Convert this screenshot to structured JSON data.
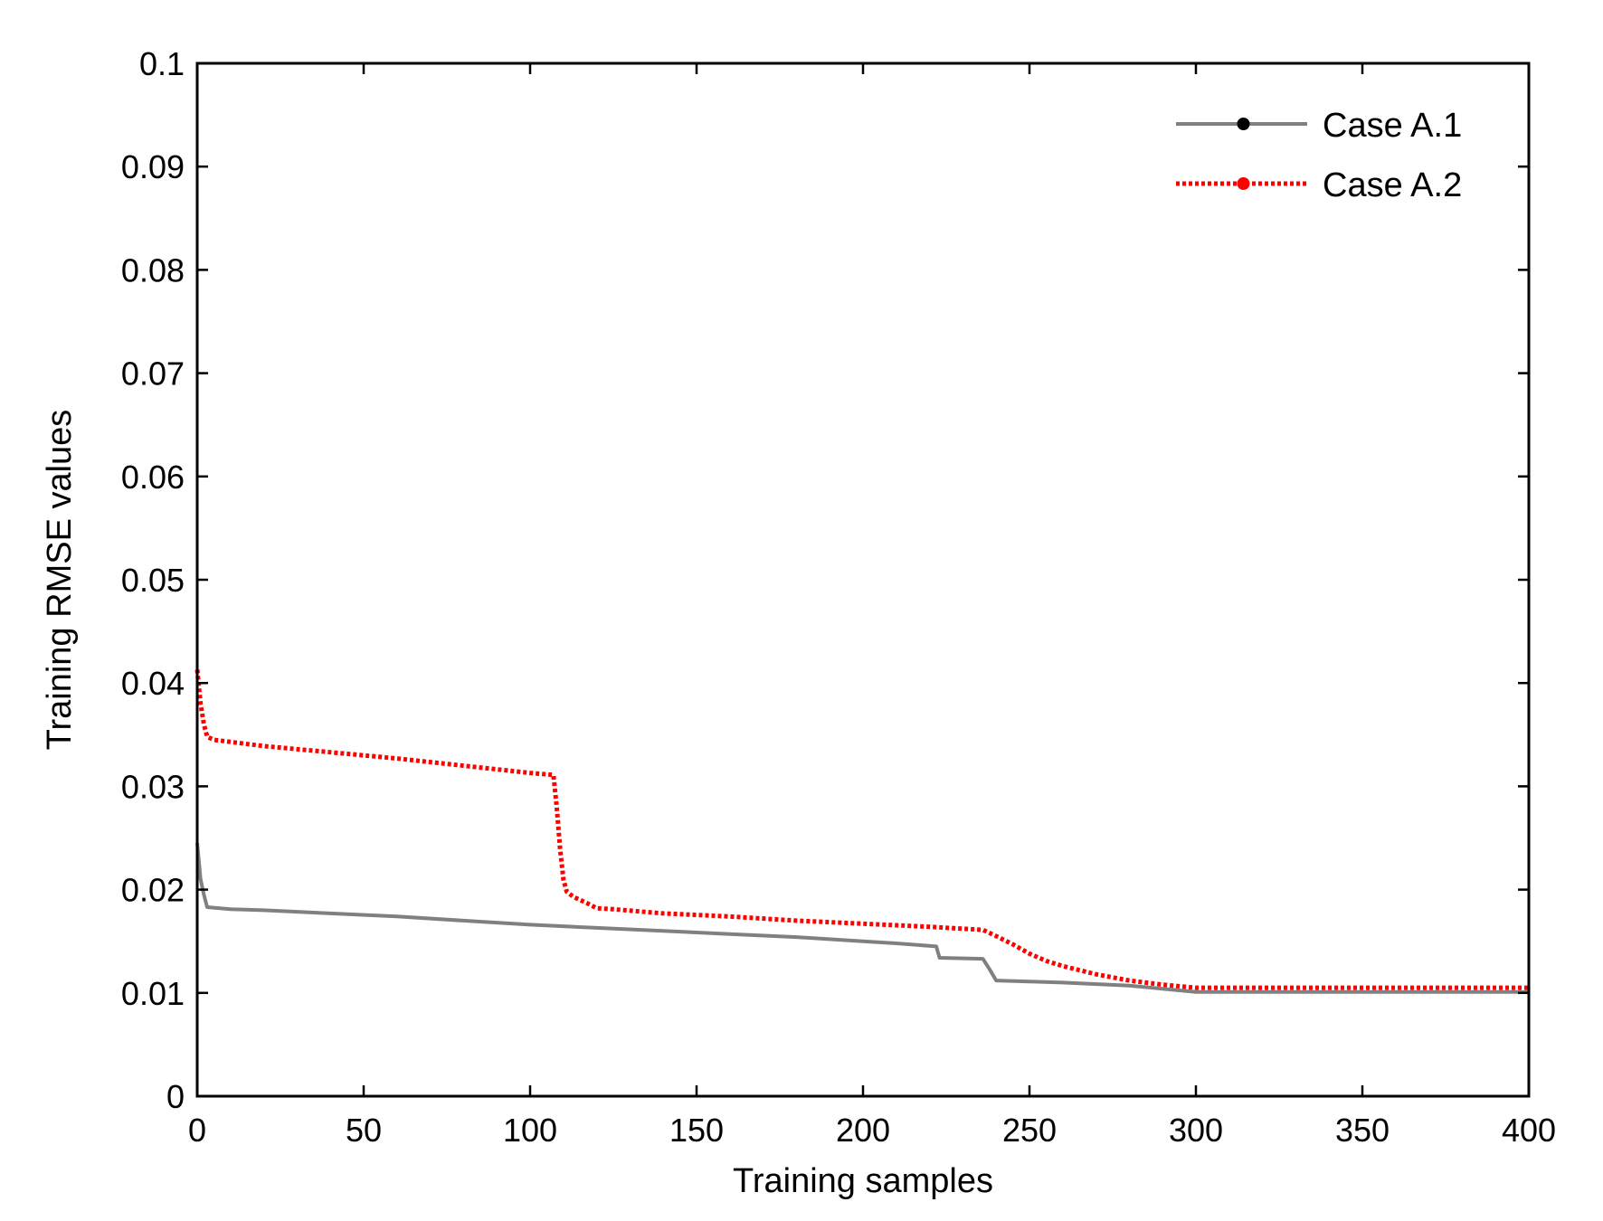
{
  "chart_data": {
    "type": "line",
    "title": "",
    "xlabel": "Training samples",
    "ylabel": "Training RMSE values",
    "xlim": [
      0,
      400
    ],
    "ylim": [
      0,
      0.1
    ],
    "xticks": [
      0,
      50,
      100,
      150,
      200,
      250,
      300,
      350,
      400
    ],
    "xtick_labels": [
      "0",
      "50",
      "100",
      "150",
      "200",
      "250",
      "300",
      "350",
      "400"
    ],
    "yticks": [
      0,
      0.01,
      0.02,
      0.03,
      0.04,
      0.05,
      0.06,
      0.07,
      0.08,
      0.09,
      0.1
    ],
    "ytick_labels": [
      "0",
      "0.01",
      "0.02",
      "0.03",
      "0.04",
      "0.05",
      "0.06",
      "0.07",
      "0.08",
      "0.09",
      "0.1"
    ],
    "grid": false,
    "legend_position": "top-right",
    "series": [
      {
        "name": "Case A.1",
        "color": "#808080",
        "marker_color": "#000000",
        "style": "solid",
        "x": [
          0,
          1,
          2,
          3,
          10,
          20,
          40,
          60,
          80,
          100,
          120,
          140,
          160,
          180,
          200,
          210,
          222,
          223,
          236,
          238,
          240,
          250,
          260,
          280,
          290,
          300,
          350,
          400
        ],
        "y": [
          0.0245,
          0.021,
          0.0195,
          0.0183,
          0.0181,
          0.018,
          0.0177,
          0.0174,
          0.017,
          0.0166,
          0.0163,
          0.016,
          0.0157,
          0.0154,
          0.015,
          0.0148,
          0.0145,
          0.0134,
          0.0133,
          0.0123,
          0.0112,
          0.0111,
          0.011,
          0.0107,
          0.0104,
          0.0101,
          0.0101,
          0.0101
        ]
      },
      {
        "name": "Case A.2",
        "color": "#ff0000",
        "marker_color": "#ff0000",
        "style": "dotted",
        "x": [
          0,
          1,
          2,
          3,
          5,
          20,
          40,
          60,
          80,
          100,
          107,
          108,
          109,
          110,
          111,
          113,
          117,
          120,
          125,
          140,
          160,
          180,
          200,
          220,
          236,
          240,
          245,
          250,
          255,
          260,
          270,
          280,
          290,
          300,
          350,
          400
        ],
        "y": [
          0.0413,
          0.038,
          0.036,
          0.0348,
          0.0345,
          0.0339,
          0.0333,
          0.0327,
          0.032,
          0.0313,
          0.0311,
          0.028,
          0.024,
          0.021,
          0.0198,
          0.0193,
          0.0187,
          0.0182,
          0.0181,
          0.0177,
          0.0174,
          0.017,
          0.0167,
          0.0164,
          0.0161,
          0.0155,
          0.0147,
          0.0138,
          0.0131,
          0.0126,
          0.0118,
          0.0112,
          0.0108,
          0.0105,
          0.0105,
          0.0105
        ]
      }
    ]
  }
}
